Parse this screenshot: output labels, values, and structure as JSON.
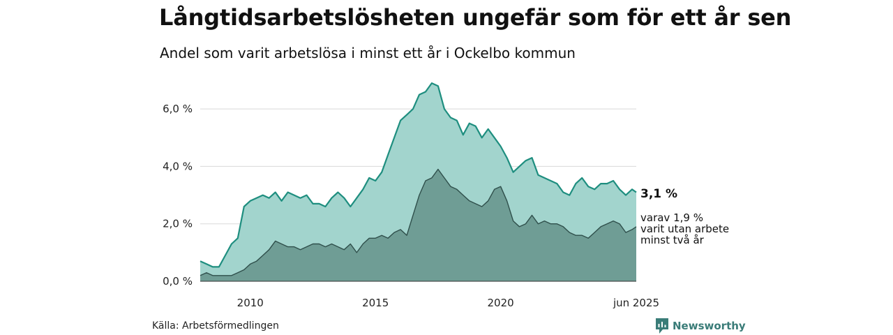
{
  "header": {
    "title": "Långtidsarbetslösheten ungefär som för ett år sen",
    "subtitle": "Andel som varit arbetslösa i minst ett år i Ockelbo kommun"
  },
  "footer": {
    "source": "Källa: Arbetsförmedlingen",
    "brand": "Newsworthy"
  },
  "colors": {
    "upper_fill": "#a2d4cd",
    "upper_line": "#1e8e7f",
    "lower_fill": "#6f9d95",
    "lower_line": "#2f4f4b",
    "grid": "#d9d9d9",
    "brand": "#3a7c78"
  },
  "chart_data": {
    "type": "area",
    "x_axis": {
      "start": "2008-01",
      "end": "2025-06",
      "tick_labels": [
        "2010",
        "2015",
        "2020",
        "jun 2025"
      ],
      "tick_positions": [
        "2010-01",
        "2015-01",
        "2020-01",
        "2025-06"
      ]
    },
    "y_axis": {
      "range": [
        0,
        7
      ],
      "ticks": [
        0,
        2,
        4,
        6
      ],
      "tick_labels": [
        "0,0 %",
        "2,0 %",
        "4,0 %",
        "6,0 %"
      ],
      "unit": "%"
    },
    "grid": true,
    "series": [
      {
        "label_lines": [
          "3,1 %"
        ],
        "points": [
          [
            "2008-01",
            0.7
          ],
          [
            "2008-04",
            0.6
          ],
          [
            "2008-07",
            0.5
          ],
          [
            "2008-10",
            0.5
          ],
          [
            "2009-01",
            0.9
          ],
          [
            "2009-04",
            1.3
          ],
          [
            "2009-07",
            1.5
          ],
          [
            "2009-10",
            2.6
          ],
          [
            "2010-01",
            2.8
          ],
          [
            "2010-04",
            2.9
          ],
          [
            "2010-07",
            3.0
          ],
          [
            "2010-10",
            2.9
          ],
          [
            "2011-01",
            3.1
          ],
          [
            "2011-04",
            2.8
          ],
          [
            "2011-07",
            3.1
          ],
          [
            "2011-10",
            3.0
          ],
          [
            "2012-01",
            2.9
          ],
          [
            "2012-04",
            3.0
          ],
          [
            "2012-07",
            2.7
          ],
          [
            "2012-10",
            2.7
          ],
          [
            "2013-01",
            2.6
          ],
          [
            "2013-04",
            2.9
          ],
          [
            "2013-07",
            3.1
          ],
          [
            "2013-10",
            2.9
          ],
          [
            "2014-01",
            2.6
          ],
          [
            "2014-04",
            2.9
          ],
          [
            "2014-07",
            3.2
          ],
          [
            "2014-10",
            3.6
          ],
          [
            "2015-01",
            3.5
          ],
          [
            "2015-04",
            3.8
          ],
          [
            "2015-07",
            4.4
          ],
          [
            "2015-10",
            5.0
          ],
          [
            "2016-01",
            5.6
          ],
          [
            "2016-04",
            5.8
          ],
          [
            "2016-07",
            6.0
          ],
          [
            "2016-10",
            6.5
          ],
          [
            "2017-01",
            6.6
          ],
          [
            "2017-04",
            6.9
          ],
          [
            "2017-07",
            6.8
          ],
          [
            "2017-10",
            6.0
          ],
          [
            "2018-01",
            5.7
          ],
          [
            "2018-04",
            5.6
          ],
          [
            "2018-07",
            5.1
          ],
          [
            "2018-10",
            5.5
          ],
          [
            "2019-01",
            5.4
          ],
          [
            "2019-04",
            5.0
          ],
          [
            "2019-07",
            5.3
          ],
          [
            "2019-10",
            5.0
          ],
          [
            "2020-01",
            4.7
          ],
          [
            "2020-04",
            4.3
          ],
          [
            "2020-07",
            3.8
          ],
          [
            "2020-10",
            4.0
          ],
          [
            "2021-01",
            4.2
          ],
          [
            "2021-04",
            4.3
          ],
          [
            "2021-07",
            3.7
          ],
          [
            "2021-10",
            3.6
          ],
          [
            "2022-01",
            3.5
          ],
          [
            "2022-04",
            3.4
          ],
          [
            "2022-07",
            3.1
          ],
          [
            "2022-10",
            3.0
          ],
          [
            "2023-01",
            3.4
          ],
          [
            "2023-04",
            3.6
          ],
          [
            "2023-07",
            3.3
          ],
          [
            "2023-10",
            3.2
          ],
          [
            "2024-01",
            3.4
          ],
          [
            "2024-04",
            3.4
          ],
          [
            "2024-07",
            3.5
          ],
          [
            "2024-10",
            3.2
          ],
          [
            "2025-01",
            3.0
          ],
          [
            "2025-04",
            3.2
          ],
          [
            "2025-06",
            3.1
          ]
        ]
      },
      {
        "label_lines": [
          "varav 1,9 %",
          "varit utan arbete",
          "minst två år"
        ],
        "points": [
          [
            "2008-01",
            0.2
          ],
          [
            "2008-04",
            0.3
          ],
          [
            "2008-07",
            0.2
          ],
          [
            "2008-10",
            0.2
          ],
          [
            "2009-01",
            0.2
          ],
          [
            "2009-04",
            0.2
          ],
          [
            "2009-07",
            0.3
          ],
          [
            "2009-10",
            0.4
          ],
          [
            "2010-01",
            0.6
          ],
          [
            "2010-04",
            0.7
          ],
          [
            "2010-07",
            0.9
          ],
          [
            "2010-10",
            1.1
          ],
          [
            "2011-01",
            1.4
          ],
          [
            "2011-04",
            1.3
          ],
          [
            "2011-07",
            1.2
          ],
          [
            "2011-10",
            1.2
          ],
          [
            "2012-01",
            1.1
          ],
          [
            "2012-04",
            1.2
          ],
          [
            "2012-07",
            1.3
          ],
          [
            "2012-10",
            1.3
          ],
          [
            "2013-01",
            1.2
          ],
          [
            "2013-04",
            1.3
          ],
          [
            "2013-07",
            1.2
          ],
          [
            "2013-10",
            1.1
          ],
          [
            "2014-01",
            1.3
          ],
          [
            "2014-04",
            1.0
          ],
          [
            "2014-07",
            1.3
          ],
          [
            "2014-10",
            1.5
          ],
          [
            "2015-01",
            1.5
          ],
          [
            "2015-04",
            1.6
          ],
          [
            "2015-07",
            1.5
          ],
          [
            "2015-10",
            1.7
          ],
          [
            "2016-01",
            1.8
          ],
          [
            "2016-04",
            1.6
          ],
          [
            "2016-07",
            2.3
          ],
          [
            "2016-10",
            3.0
          ],
          [
            "2017-01",
            3.5
          ],
          [
            "2017-04",
            3.6
          ],
          [
            "2017-07",
            3.9
          ],
          [
            "2017-10",
            3.6
          ],
          [
            "2018-01",
            3.3
          ],
          [
            "2018-04",
            3.2
          ],
          [
            "2018-07",
            3.0
          ],
          [
            "2018-10",
            2.8
          ],
          [
            "2019-01",
            2.7
          ],
          [
            "2019-04",
            2.6
          ],
          [
            "2019-07",
            2.8
          ],
          [
            "2019-10",
            3.2
          ],
          [
            "2020-01",
            3.3
          ],
          [
            "2020-04",
            2.8
          ],
          [
            "2020-07",
            2.1
          ],
          [
            "2020-10",
            1.9
          ],
          [
            "2021-01",
            2.0
          ],
          [
            "2021-04",
            2.3
          ],
          [
            "2021-07",
            2.0
          ],
          [
            "2021-10",
            2.1
          ],
          [
            "2022-01",
            2.0
          ],
          [
            "2022-04",
            2.0
          ],
          [
            "2022-07",
            1.9
          ],
          [
            "2022-10",
            1.7
          ],
          [
            "2023-01",
            1.6
          ],
          [
            "2023-04",
            1.6
          ],
          [
            "2023-07",
            1.5
          ],
          [
            "2023-10",
            1.7
          ],
          [
            "2024-01",
            1.9
          ],
          [
            "2024-04",
            2.0
          ],
          [
            "2024-07",
            2.1
          ],
          [
            "2024-10",
            2.0
          ],
          [
            "2025-01",
            1.7
          ],
          [
            "2025-04",
            1.8
          ],
          [
            "2025-06",
            1.9
          ]
        ]
      }
    ]
  }
}
